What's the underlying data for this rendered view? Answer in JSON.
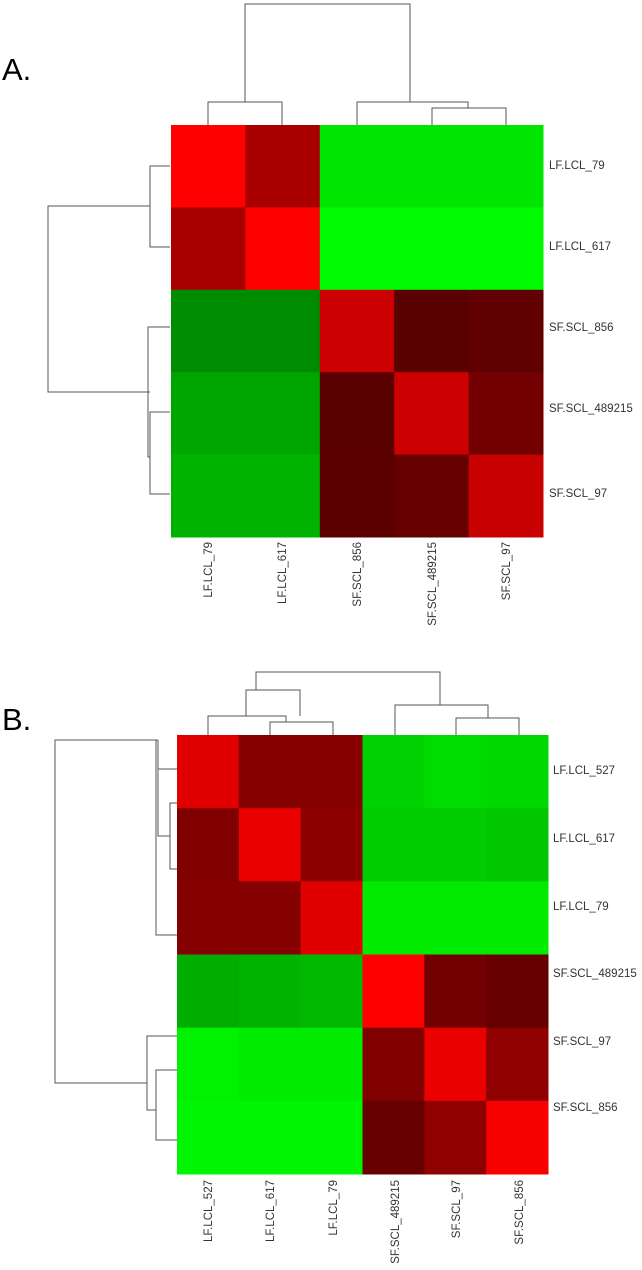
{
  "colors": {
    "low": "#00ff00",
    "mid": "#000000",
    "high": "#ff0000",
    "dendrogram": "#555555"
  },
  "chart_data": [
    {
      "type": "heatmap",
      "panel_label": "A.",
      "title": "",
      "row_labels": [
        "LF.LCL_79",
        "LF.LCL_617",
        "SF.SCL_856",
        "SF.SCL_489215",
        "SF.SCL_97"
      ],
      "col_labels": [
        "LF.LCL_79",
        "LF.LCL_617",
        "SF.SCL_856",
        "SF.SCL_489215",
        "SF.SCL_97"
      ],
      "value_range": [
        -1,
        1
      ],
      "values": [
        [
          1.0,
          0.66,
          -0.9,
          -0.9,
          -0.9
        ],
        [
          0.66,
          1.0,
          -0.98,
          -0.98,
          -0.98
        ],
        [
          -0.55,
          -0.55,
          0.8,
          0.35,
          0.38
        ],
        [
          -0.65,
          -0.65,
          0.35,
          0.8,
          0.45
        ],
        [
          -0.7,
          -0.7,
          0.36,
          0.4,
          0.78
        ]
      ],
      "legend": "none",
      "grid": false
    },
    {
      "type": "heatmap",
      "panel_label": "B.",
      "title": "",
      "row_labels": [
        "LF.LCL_527",
        "LF.LCL_617",
        "LF.LCL_79",
        "SF.SCL_489215",
        "SF.SCL_97",
        "SF.SCL_856"
      ],
      "col_labels": [
        "LF.LCL_527",
        "LF.LCL_617",
        "LF.LCL_79",
        "SF.SCL_489215",
        "SF.SCL_97",
        "SF.SCL_856"
      ],
      "value_range": [
        -1,
        1
      ],
      "values": [
        [
          0.88,
          0.52,
          0.53,
          -0.82,
          -0.86,
          -0.85
        ],
        [
          0.5,
          0.92,
          0.55,
          -0.8,
          -0.8,
          -0.78
        ],
        [
          0.52,
          0.52,
          0.88,
          -0.92,
          -0.92,
          -0.92
        ],
        [
          -0.68,
          -0.7,
          -0.72,
          1.0,
          0.45,
          0.4
        ],
        [
          -0.95,
          -0.92,
          -0.92,
          0.5,
          0.92,
          0.56
        ],
        [
          -0.96,
          -0.96,
          -0.96,
          0.4,
          0.56,
          0.97
        ]
      ],
      "legend": "none",
      "grid": false
    }
  ]
}
